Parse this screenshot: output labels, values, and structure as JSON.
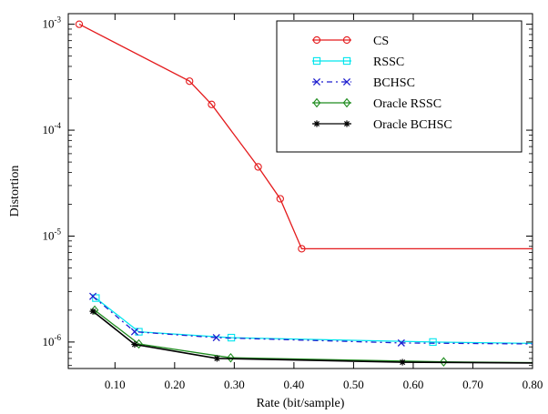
{
  "chart_data": {
    "type": "line",
    "xlabel": "Rate (bit/sample)",
    "ylabel": "Distortion",
    "xlim": [
      0.0217,
      0.8
    ],
    "ylim_exp": [
      -6.25,
      -2.9
    ],
    "yscale": "log",
    "x_ticks": [
      {
        "value": 0.1,
        "label": "0.10"
      },
      {
        "value": 0.2,
        "label": "0.20"
      },
      {
        "value": 0.3,
        "label": "0.30"
      },
      {
        "value": 0.4,
        "label": "0.40"
      },
      {
        "value": 0.5,
        "label": "0.50"
      },
      {
        "value": 0.6,
        "label": "0.60"
      },
      {
        "value": 0.7,
        "label": "0.70"
      },
      {
        "value": 0.8,
        "label": "0.80"
      }
    ],
    "y_ticks": [
      {
        "exp": -3,
        "base": "10",
        "sup": "-3"
      },
      {
        "exp": -4,
        "base": "10",
        "sup": "-4"
      },
      {
        "exp": -5,
        "base": "10",
        "sup": "-5"
      },
      {
        "exp": -6,
        "base": "10",
        "sup": "-6"
      }
    ],
    "legend_position": "top-right",
    "series": [
      {
        "name": "CS",
        "color": "#e41a1c",
        "marker": "circle",
        "dash": "",
        "x": [
          0.04,
          0.225,
          0.262,
          0.34,
          0.377,
          0.413,
          0.8
        ],
        "y": [
          0.001,
          0.00029,
          0.000175,
          4.5e-05,
          2.25e-05,
          7.6e-06,
          7.6e-06
        ],
        "marker_count": 6
      },
      {
        "name": "RSSC",
        "color": "#00e5ee",
        "marker": "square",
        "dash": "",
        "x": [
          0.068,
          0.14,
          0.295,
          0.633,
          0.8
        ],
        "y": [
          2.6e-06,
          1.25e-06,
          1.1e-06,
          1e-06,
          9.7e-07
        ],
        "marker_count": 4
      },
      {
        "name": "BCHSC",
        "color": "#1f1fcf",
        "marker": "x",
        "dash": "6,4,2,4",
        "x": [
          0.063,
          0.133,
          0.27,
          0.58,
          0.8
        ],
        "y": [
          2.7e-06,
          1.25e-06,
          1.1e-06,
          9.8e-07,
          9.6e-07
        ],
        "marker_count": 4
      },
      {
        "name": "Oracle RSSC",
        "color": "#1e8c1e",
        "marker": "diamond",
        "dash": "",
        "x": [
          0.066,
          0.14,
          0.294,
          0.651,
          0.8
        ],
        "y": [
          2e-06,
          9.6e-07,
          7.1e-07,
          6.5e-07,
          6.4e-07
        ],
        "marker_count": 4
      },
      {
        "name": "Oracle BCHSC",
        "color": "#000000",
        "marker": "star",
        "dash": "",
        "x": [
          0.063,
          0.133,
          0.271,
          0.582,
          0.8
        ],
        "y": [
          1.95e-06,
          9.5e-07,
          7e-07,
          6.45e-07,
          6.35e-07
        ],
        "marker_count": 4
      }
    ]
  }
}
